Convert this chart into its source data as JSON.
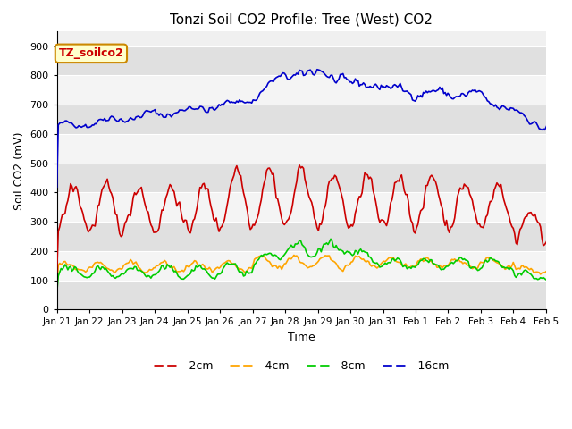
{
  "title": "Tonzi Soil CO2 Profile: Tree (West) CO2",
  "xlabel": "Time",
  "ylabel": "Soil CO2 (mV)",
  "ylim": [
    0,
    950
  ],
  "yticks": [
    0,
    100,
    200,
    300,
    400,
    500,
    600,
    700,
    800,
    900
  ],
  "annotation": "TZ_soilco2",
  "legend": [
    "-2cm",
    "-4cm",
    "-8cm",
    "-16cm"
  ],
  "colors": [
    "#cc0000",
    "#ffa500",
    "#00cc00",
    "#0000cc"
  ],
  "line_width": 1.2,
  "xtick_labels": [
    "Jan 21",
    "Jan 22",
    "Jan 23",
    "Jan 24",
    "Jan 25",
    "Jan 26",
    "Jan 27",
    "Jan 28",
    "Jan 29",
    "Jan 30",
    "Jan 31",
    "Feb 1",
    "Feb 2",
    "Feb 3",
    "Feb 4",
    "Feb 5"
  ]
}
